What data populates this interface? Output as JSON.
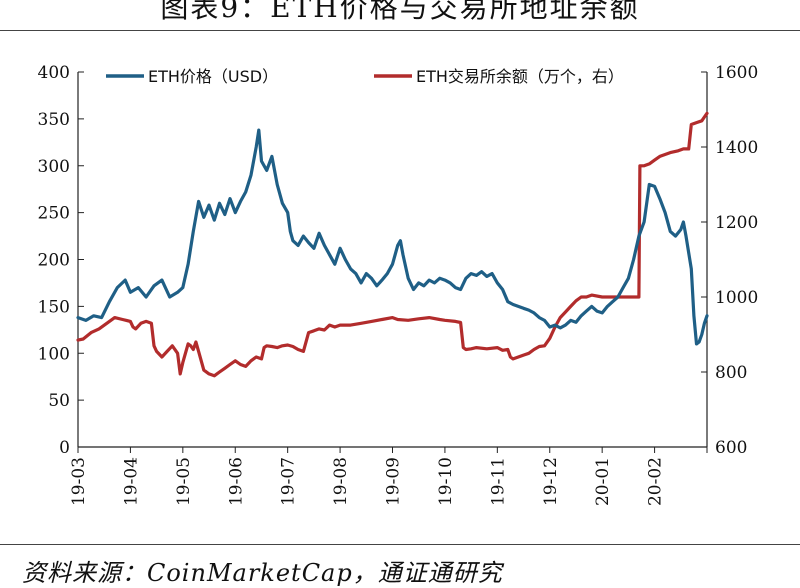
{
  "header": {
    "title": "图表9：ETH价格与交易所地址余额"
  },
  "footer": {
    "source": "资料来源：CoinMarketCap，通证通研究"
  },
  "colors": {
    "price": "#1f5f86",
    "balance": "#b22c2c",
    "axis": "#222222"
  },
  "chart_data": {
    "type": "line",
    "title": "图表9：ETH价格与交易所地址余额",
    "xlabel": "",
    "ylabel": "",
    "legend_position": "top",
    "grid": false,
    "x_ticks": [
      "19-03",
      "19-04",
      "19-05",
      "19-06",
      "19-07",
      "19-08",
      "19-09",
      "19-10",
      "19-11",
      "19-12",
      "20-01",
      "20-02"
    ],
    "x_range": [
      "19-03",
      "20-03"
    ],
    "y_left": {
      "min": 0,
      "max": 400,
      "ticks": [
        "0",
        "50",
        "100",
        "150",
        "200",
        "250",
        "300",
        "350",
        "400"
      ]
    },
    "y_right": {
      "min": 600,
      "max": 1600,
      "ticks": [
        "600",
        "800",
        "1000",
        "1200",
        "1400",
        "1600"
      ]
    },
    "series": [
      {
        "name": "ETH价格（USD）",
        "axis": "left",
        "color": "#1f5f86",
        "points": [
          [
            0.0,
            138
          ],
          [
            0.15,
            135
          ],
          [
            0.3,
            140
          ],
          [
            0.45,
            138
          ],
          [
            0.6,
            155
          ],
          [
            0.75,
            170
          ],
          [
            0.9,
            178
          ],
          [
            1.0,
            165
          ],
          [
            1.15,
            170
          ],
          [
            1.3,
            160
          ],
          [
            1.45,
            172
          ],
          [
            1.6,
            178
          ],
          [
            1.75,
            160
          ],
          [
            1.9,
            165
          ],
          [
            2.0,
            170
          ],
          [
            2.1,
            195
          ],
          [
            2.2,
            230
          ],
          [
            2.3,
            262
          ],
          [
            2.4,
            245
          ],
          [
            2.5,
            258
          ],
          [
            2.6,
            242
          ],
          [
            2.7,
            260
          ],
          [
            2.8,
            248
          ],
          [
            2.9,
            265
          ],
          [
            3.0,
            250
          ],
          [
            3.1,
            262
          ],
          [
            3.2,
            272
          ],
          [
            3.3,
            290
          ],
          [
            3.4,
            320
          ],
          [
            3.45,
            338
          ],
          [
            3.5,
            305
          ],
          [
            3.6,
            295
          ],
          [
            3.7,
            310
          ],
          [
            3.8,
            280
          ],
          [
            3.9,
            260
          ],
          [
            4.0,
            250
          ],
          [
            4.05,
            230
          ],
          [
            4.1,
            220
          ],
          [
            4.2,
            215
          ],
          [
            4.3,
            225
          ],
          [
            4.4,
            218
          ],
          [
            4.5,
            212
          ],
          [
            4.6,
            228
          ],
          [
            4.7,
            215
          ],
          [
            4.8,
            205
          ],
          [
            4.9,
            195
          ],
          [
            5.0,
            212
          ],
          [
            5.1,
            200
          ],
          [
            5.2,
            190
          ],
          [
            5.3,
            185
          ],
          [
            5.4,
            175
          ],
          [
            5.5,
            185
          ],
          [
            5.6,
            180
          ],
          [
            5.7,
            172
          ],
          [
            5.8,
            178
          ],
          [
            5.9,
            185
          ],
          [
            6.0,
            195
          ],
          [
            6.1,
            215
          ],
          [
            6.15,
            220
          ],
          [
            6.2,
            205
          ],
          [
            6.3,
            180
          ],
          [
            6.4,
            168
          ],
          [
            6.5,
            175
          ],
          [
            6.6,
            172
          ],
          [
            6.7,
            178
          ],
          [
            6.8,
            175
          ],
          [
            6.9,
            180
          ],
          [
            7.0,
            178
          ],
          [
            7.1,
            175
          ],
          [
            7.2,
            170
          ],
          [
            7.3,
            168
          ],
          [
            7.4,
            180
          ],
          [
            7.5,
            185
          ],
          [
            7.6,
            183
          ],
          [
            7.7,
            187
          ],
          [
            7.8,
            182
          ],
          [
            7.9,
            185
          ],
          [
            8.0,
            175
          ],
          [
            8.1,
            168
          ],
          [
            8.2,
            155
          ],
          [
            8.3,
            152
          ],
          [
            8.4,
            150
          ],
          [
            8.5,
            148
          ],
          [
            8.6,
            146
          ],
          [
            8.7,
            143
          ],
          [
            8.8,
            138
          ],
          [
            8.9,
            135
          ],
          [
            9.0,
            128
          ],
          [
            9.1,
            130
          ],
          [
            9.2,
            127
          ],
          [
            9.3,
            130
          ],
          [
            9.4,
            135
          ],
          [
            9.5,
            133
          ],
          [
            9.6,
            140
          ],
          [
            9.7,
            145
          ],
          [
            9.8,
            150
          ],
          [
            9.9,
            145
          ],
          [
            10.0,
            143
          ],
          [
            10.1,
            150
          ],
          [
            10.2,
            155
          ],
          [
            10.3,
            160
          ],
          [
            10.4,
            170
          ],
          [
            10.5,
            180
          ],
          [
            10.6,
            200
          ],
          [
            10.7,
            225
          ],
          [
            10.8,
            240
          ],
          [
            10.9,
            280
          ],
          [
            11.0,
            278
          ],
          [
            11.1,
            265
          ],
          [
            11.2,
            250
          ],
          [
            11.3,
            230
          ],
          [
            11.4,
            225
          ],
          [
            11.5,
            232
          ],
          [
            11.55,
            240
          ],
          [
            11.6,
            225
          ],
          [
            11.7,
            190
          ],
          [
            11.75,
            140
          ],
          [
            11.8,
            110
          ],
          [
            11.85,
            112
          ],
          [
            11.9,
            120
          ],
          [
            11.95,
            132
          ],
          [
            12.0,
            140
          ]
        ]
      },
      {
        "name": "ETH交易所余额（万个，右）",
        "axis": "right",
        "color": "#b22c2c",
        "points": [
          [
            0.0,
            885
          ],
          [
            0.1,
            888
          ],
          [
            0.25,
            905
          ],
          [
            0.4,
            915
          ],
          [
            0.55,
            930
          ],
          [
            0.7,
            945
          ],
          [
            0.85,
            940
          ],
          [
            1.0,
            935
          ],
          [
            1.05,
            920
          ],
          [
            1.1,
            915
          ],
          [
            1.2,
            930
          ],
          [
            1.3,
            935
          ],
          [
            1.4,
            930
          ],
          [
            1.45,
            870
          ],
          [
            1.5,
            855
          ],
          [
            1.6,
            840
          ],
          [
            1.7,
            855
          ],
          [
            1.8,
            870
          ],
          [
            1.9,
            850
          ],
          [
            1.95,
            795
          ],
          [
            2.0,
            825
          ],
          [
            2.1,
            875
          ],
          [
            2.15,
            870
          ],
          [
            2.2,
            860
          ],
          [
            2.25,
            880
          ],
          [
            2.3,
            855
          ],
          [
            2.4,
            805
          ],
          [
            2.5,
            795
          ],
          [
            2.6,
            790
          ],
          [
            2.7,
            800
          ],
          [
            2.8,
            810
          ],
          [
            2.9,
            820
          ],
          [
            3.0,
            830
          ],
          [
            3.1,
            820
          ],
          [
            3.2,
            815
          ],
          [
            3.3,
            830
          ],
          [
            3.4,
            840
          ],
          [
            3.5,
            835
          ],
          [
            3.55,
            865
          ],
          [
            3.6,
            870
          ],
          [
            3.7,
            868
          ],
          [
            3.8,
            865
          ],
          [
            3.9,
            870
          ],
          [
            4.0,
            872
          ],
          [
            4.1,
            868
          ],
          [
            4.2,
            860
          ],
          [
            4.3,
            855
          ],
          [
            4.4,
            905
          ],
          [
            4.5,
            910
          ],
          [
            4.6,
            915
          ],
          [
            4.7,
            912
          ],
          [
            4.8,
            925
          ],
          [
            4.9,
            920
          ],
          [
            5.0,
            925
          ],
          [
            5.2,
            925
          ],
          [
            5.4,
            930
          ],
          [
            5.6,
            935
          ],
          [
            5.8,
            940
          ],
          [
            6.0,
            945
          ],
          [
            6.1,
            940
          ],
          [
            6.3,
            938
          ],
          [
            6.5,
            942
          ],
          [
            6.7,
            945
          ],
          [
            6.9,
            940
          ],
          [
            7.0,
            938
          ],
          [
            7.2,
            935
          ],
          [
            7.3,
            932
          ],
          [
            7.35,
            865
          ],
          [
            7.4,
            860
          ],
          [
            7.5,
            862
          ],
          [
            7.6,
            865
          ],
          [
            7.8,
            862
          ],
          [
            8.0,
            865
          ],
          [
            8.1,
            858
          ],
          [
            8.2,
            860
          ],
          [
            8.25,
            840
          ],
          [
            8.3,
            835
          ],
          [
            8.4,
            840
          ],
          [
            8.5,
            845
          ],
          [
            8.6,
            850
          ],
          [
            8.7,
            860
          ],
          [
            8.8,
            868
          ],
          [
            8.9,
            870
          ],
          [
            9.0,
            890
          ],
          [
            9.1,
            920
          ],
          [
            9.2,
            945
          ],
          [
            9.3,
            960
          ],
          [
            9.4,
            975
          ],
          [
            9.5,
            990
          ],
          [
            9.6,
            1000
          ],
          [
            9.7,
            1000
          ],
          [
            9.8,
            1005
          ],
          [
            10.0,
            1000
          ],
          [
            10.2,
            1000
          ],
          [
            10.4,
            1000
          ],
          [
            10.6,
            1000
          ],
          [
            10.7,
            1000
          ],
          [
            10.72,
            1350
          ],
          [
            10.8,
            1350
          ],
          [
            10.9,
            1355
          ],
          [
            11.0,
            1365
          ],
          [
            11.1,
            1375
          ],
          [
            11.3,
            1385
          ],
          [
            11.45,
            1390
          ],
          [
            11.55,
            1395
          ],
          [
            11.65,
            1395
          ],
          [
            11.7,
            1460
          ],
          [
            11.8,
            1465
          ],
          [
            11.9,
            1470
          ],
          [
            11.95,
            1480
          ],
          [
            12.0,
            1490
          ]
        ]
      }
    ]
  }
}
